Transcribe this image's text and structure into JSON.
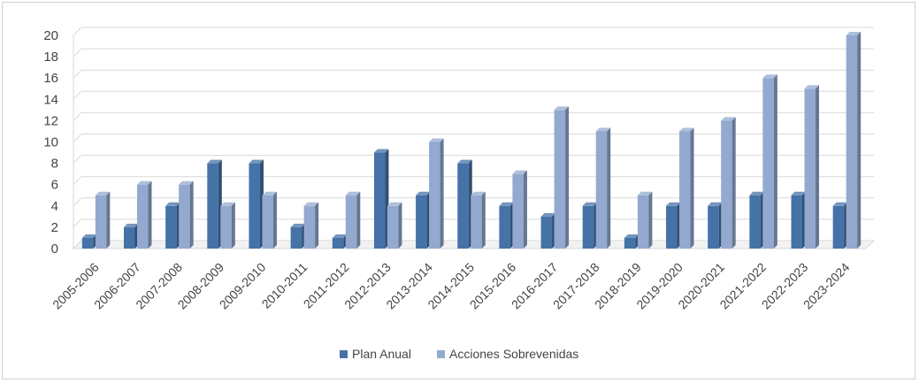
{
  "chart_data": {
    "type": "bar",
    "title": "",
    "xlabel": "",
    "ylabel": "",
    "ylim": [
      0,
      20
    ],
    "yticks": [
      "0",
      "2",
      "4",
      "6",
      "8",
      "10",
      "12",
      "14",
      "16",
      "18",
      "20"
    ],
    "grid": true,
    "legend_position": "bottom-center",
    "categories": [
      "2005-2006",
      "2006-2007",
      "2007-2008",
      "2008-2009",
      "2009-2010",
      "2010-2011",
      "2011-2012",
      "2012-2013",
      "2013-2014",
      "2014-2015",
      "2015-2016",
      "2016-2017",
      "2017-2018",
      "2018-2019",
      "2019-2020",
      "2020-2021",
      "2021-2022",
      "2022-2023",
      "2023-2024"
    ],
    "series": [
      {
        "name": "Plan Anual",
        "color": "#4572a7",
        "values": [
          1,
          2,
          4,
          8,
          8,
          2,
          1,
          9,
          5,
          8,
          4,
          3,
          4,
          1,
          4,
          4,
          5,
          5,
          4
        ]
      },
      {
        "name": "Acciones Sobrevenidas",
        "color": "#93a9cf",
        "values": [
          5,
          6,
          6,
          4,
          5,
          4,
          5,
          4,
          10,
          5,
          7,
          13,
          11,
          5,
          11,
          12,
          16,
          15,
          20
        ]
      }
    ]
  }
}
